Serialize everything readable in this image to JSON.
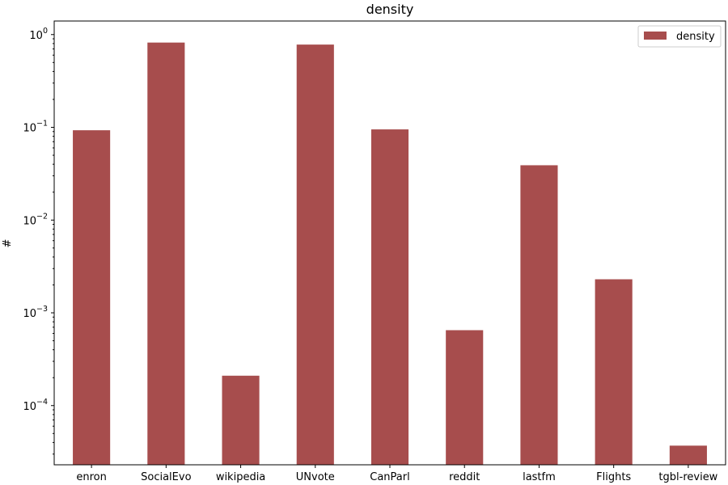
{
  "chart_data": {
    "type": "bar",
    "title": "density",
    "xlabel": "",
    "ylabel": "#",
    "yscale": "log",
    "ylim": [
      2.3e-05,
      1.4
    ],
    "y_ticks": [
      {
        "value": 0.0001,
        "base": "10",
        "exp": "−4"
      },
      {
        "value": 0.001,
        "base": "10",
        "exp": "−3"
      },
      {
        "value": 0.01,
        "base": "10",
        "exp": "−2"
      },
      {
        "value": 0.1,
        "base": "10",
        "exp": "−1"
      },
      {
        "value": 1,
        "base": "10",
        "exp": "0"
      }
    ],
    "categories": [
      "enron",
      "SocialEvo",
      "wikipedia",
      "UNvote",
      "CanParl",
      "reddit",
      "lastfm",
      "Flights",
      "tgbl-review"
    ],
    "series": [
      {
        "name": "density",
        "color": "#a74d4d",
        "values": [
          0.093,
          0.82,
          0.00021,
          0.78,
          0.095,
          0.00065,
          0.039,
          0.0023,
          3.7e-05
        ]
      }
    ],
    "legend_position": "top-right",
    "grid": false
  }
}
